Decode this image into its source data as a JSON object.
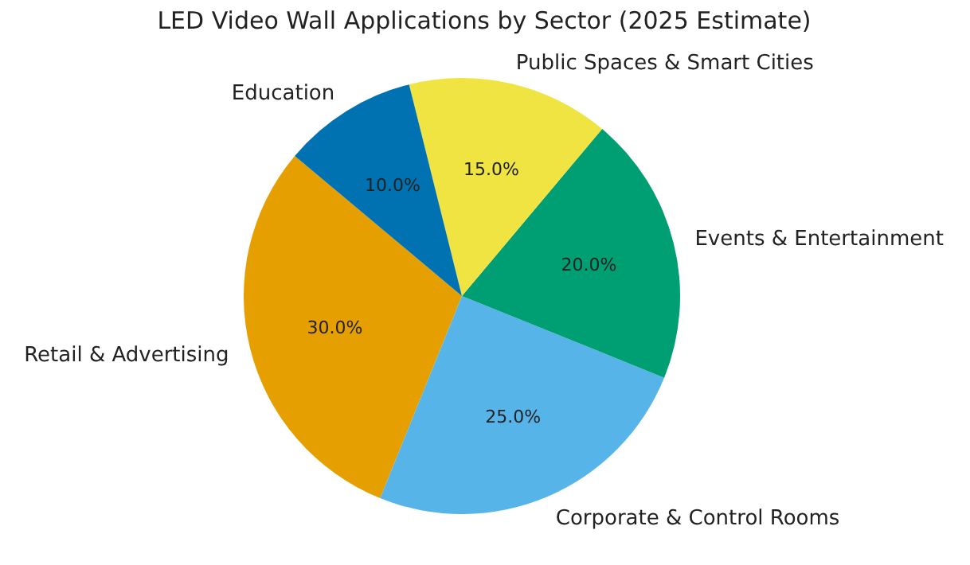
{
  "chart_data": {
    "type": "pie",
    "title": "LED Video Wall Applications by Sector (2025 Estimate)",
    "categories": [
      "Retail & Advertising",
      "Corporate & Control Rooms",
      "Events & Entertainment",
      "Public Spaces & Smart Cities",
      "Education"
    ],
    "values": [
      30,
      25,
      20,
      15,
      10
    ],
    "colors": [
      "#e69f00",
      "#56b4e9",
      "#009e73",
      "#f0e442",
      "#0072b2"
    ],
    "value_labels": [
      "30.0%",
      "25.0%",
      "20.0%",
      "15.0%",
      "10.0%"
    ]
  }
}
